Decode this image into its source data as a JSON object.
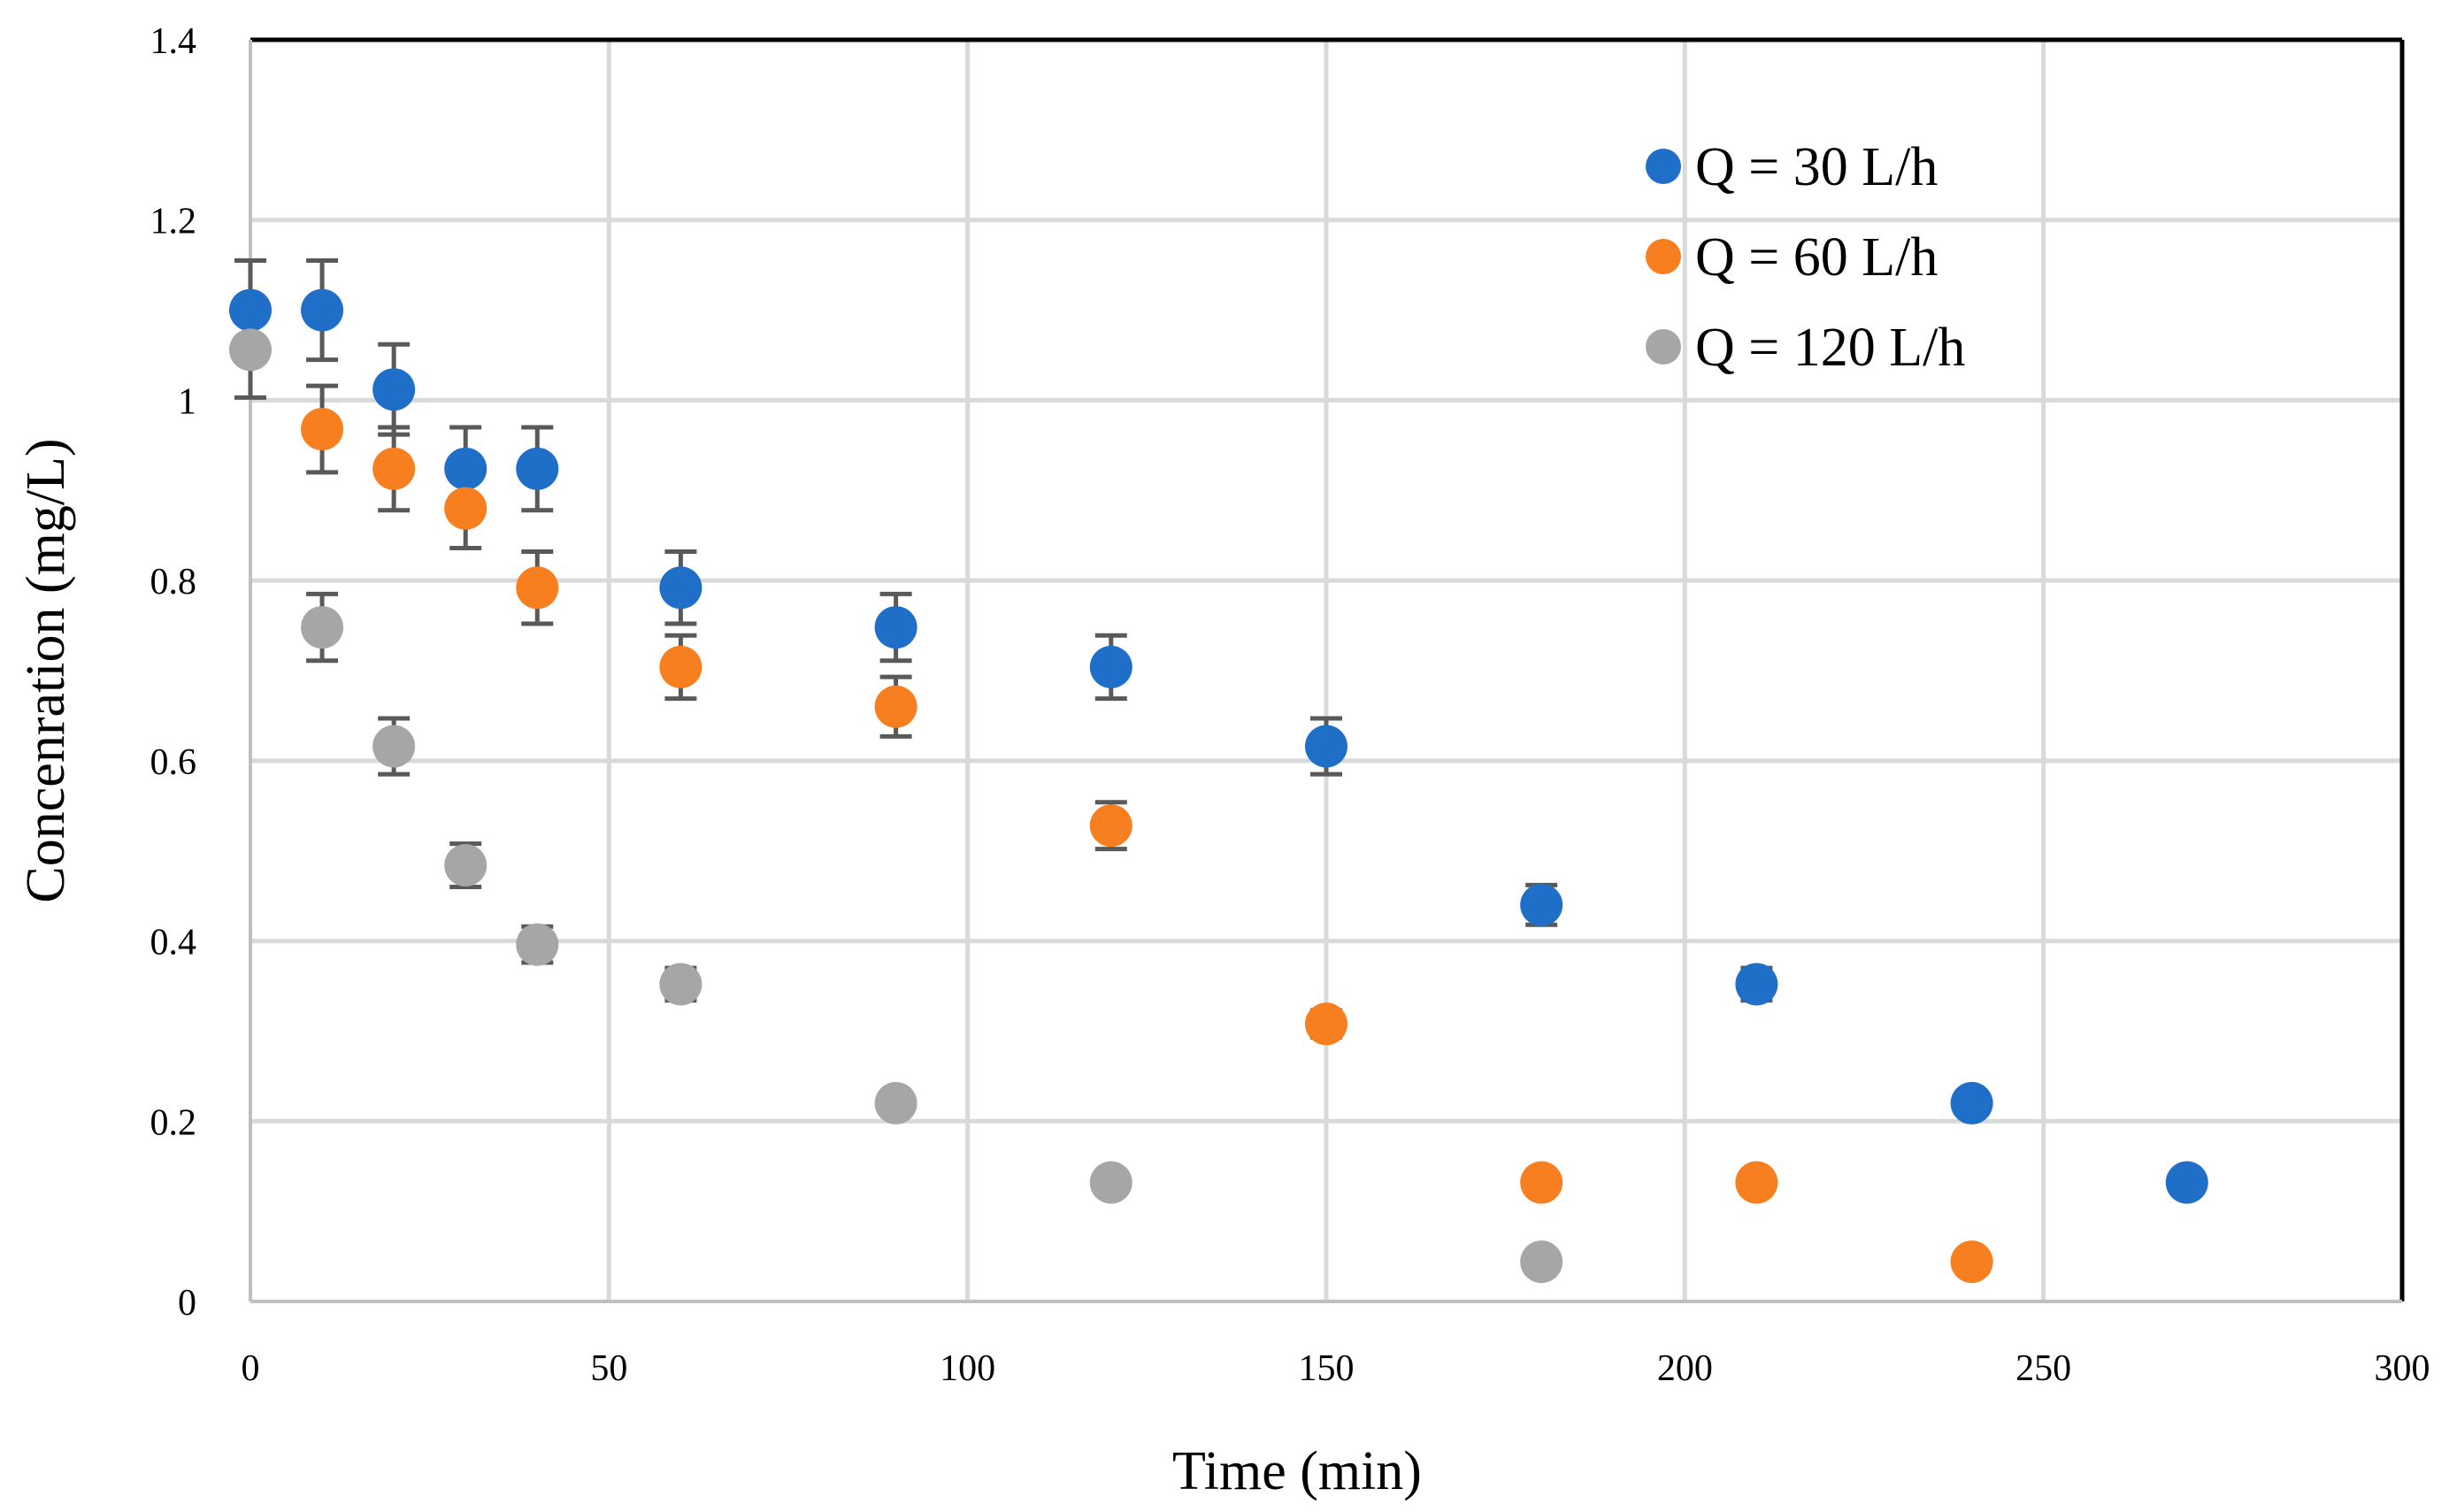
{
  "chart_data": {
    "type": "scatter",
    "xlabel": "Time (min)",
    "ylabel": "Concenration (mg/L)",
    "xlim": [
      0,
      300
    ],
    "ylim": [
      0,
      1.4
    ],
    "xticks": [
      0,
      50,
      100,
      150,
      200,
      250,
      300
    ],
    "yticks": [
      0,
      0.2,
      0.4,
      0.6,
      0.8,
      1,
      1.2,
      1.4
    ],
    "xtick_labels": [
      "0",
      "50",
      "100",
      "150",
      "200",
      "250",
      "300"
    ],
    "ytick_labels": [
      "0",
      "0.2",
      "0.4",
      "0.6",
      "0.8",
      "1",
      "1.2",
      "1.4"
    ],
    "grid": true,
    "legend_position": "top-right",
    "series": [
      {
        "name": "Q = 30 L/h",
        "color": "#1f6ec8",
        "x": [
          0,
          10,
          20,
          30,
          40,
          60,
          90,
          120,
          150,
          180,
          210,
          240,
          270
        ],
        "y": [
          1.1,
          1.1,
          1.012,
          0.924,
          0.924,
          0.792,
          0.748,
          0.704,
          0.616,
          0.44,
          0.352,
          0.22,
          0.132
        ],
        "err": [
          0.055,
          0.055,
          0.05,
          0.046,
          0.046,
          0.04,
          0.037,
          0.035,
          0.031,
          0.022,
          0.018,
          0,
          0
        ]
      },
      {
        "name": "Q = 60 L/h",
        "color": "#f77f1f",
        "x": [
          10,
          20,
          30,
          40,
          60,
          90,
          120,
          150,
          180,
          210,
          240
        ],
        "y": [
          0.968,
          0.924,
          0.88,
          0.792,
          0.704,
          0.66,
          0.528,
          0.308,
          0.132,
          0.132,
          0.044
        ],
        "err": [
          0.048,
          0.046,
          0.044,
          0.04,
          0.035,
          0.033,
          0.026,
          0.015,
          0,
          0,
          0
        ]
      },
      {
        "name": "Q = 120 L/h",
        "color": "#a6a6a6",
        "x": [
          0,
          10,
          20,
          30,
          40,
          60,
          90,
          120,
          180
        ],
        "y": [
          1.056,
          0.748,
          0.616,
          0.484,
          0.396,
          0.352,
          0.22,
          0.132,
          0.044
        ],
        "err": [
          0.053,
          0.037,
          0.031,
          0.024,
          0.02,
          0.018,
          0,
          0,
          0
        ]
      }
    ]
  }
}
